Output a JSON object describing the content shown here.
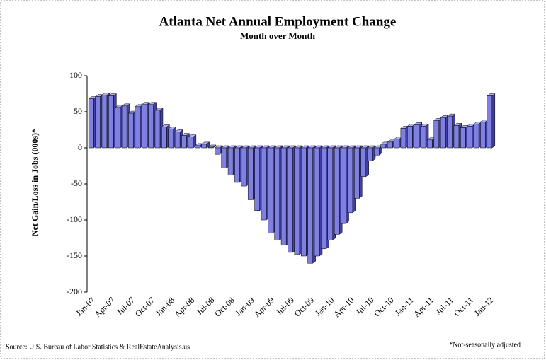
{
  "chart_data": {
    "type": "bar",
    "title": "Atlanta Net Annual Employment Change",
    "subtitle": "Month over Month",
    "y_label": "Net Gain/Loss in Jobs (000s)*",
    "source": "Source: U.S. Bureau of Labor Statistics & RealEstateAnalysis.us",
    "note": "*Not-seasonally adjusted",
    "color": "#8080e0",
    "categories": [
      "Jan-07",
      null,
      null,
      "Apr-07",
      null,
      null,
      "Jul-07",
      null,
      null,
      "Oct-07",
      null,
      null,
      "Jan-08",
      null,
      null,
      "Apr-08",
      null,
      null,
      "Jul-08",
      null,
      null,
      "Oct-08",
      null,
      null,
      "Jan-09",
      null,
      null,
      "Apr-09",
      null,
      null,
      "Jul-09",
      null,
      null,
      "Oct-09",
      null,
      null,
      "Jan-10",
      null,
      null,
      "Apr-10",
      null,
      null,
      "Jul-10",
      null,
      null,
      "Oct-10",
      null,
      null,
      "Jan-11",
      null,
      null,
      "Apr-11",
      null,
      null,
      "Jul-11",
      null,
      null,
      "Oct-11",
      null,
      null,
      "Jan-12"
    ],
    "values": [
      68,
      71,
      73,
      72,
      56,
      58,
      48,
      57,
      60,
      60,
      52,
      29,
      26,
      22,
      17,
      15,
      3,
      5,
      1,
      -9,
      -28,
      -38,
      -48,
      -53,
      -72,
      -87,
      -100,
      -118,
      -128,
      -135,
      -145,
      -148,
      -150,
      -160,
      -150,
      -140,
      -128,
      -120,
      -105,
      -90,
      -70,
      -40,
      -18,
      -10,
      5,
      8,
      12,
      27,
      30,
      32,
      30,
      11,
      38,
      42,
      44,
      31,
      28,
      30,
      33,
      36,
      72
    ],
    "ylim": [
      -200,
      100
    ],
    "yticks": [
      -200,
      -150,
      -100,
      -50,
      0,
      50,
      100
    ]
  }
}
